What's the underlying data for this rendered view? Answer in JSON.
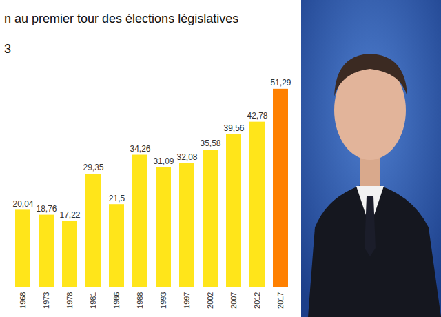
{
  "chart_data": {
    "type": "bar",
    "title": "n au premier tour des élections législatives",
    "subtitle": "3",
    "categories": [
      "1968",
      "1973",
      "1978",
      "1981",
      "1986",
      "1988",
      "1993",
      "1997",
      "2002",
      "2007",
      "2012",
      "2017"
    ],
    "values": [
      20.04,
      18.76,
      17.22,
      29.35,
      21.5,
      34.26,
      31.09,
      32.08,
      35.58,
      39.56,
      42.78,
      51.29
    ],
    "value_labels": [
      "20,04",
      "18,76",
      "17,22",
      "29,35",
      "21,5",
      "34,26",
      "31,09",
      "32,08",
      "35,58",
      "39,56",
      "42,78",
      "51,29"
    ],
    "colors": [
      "#ffe51a",
      "#ffe51a",
      "#ffe51a",
      "#ffe51a",
      "#ffe51a",
      "#ffe51a",
      "#ffe51a",
      "#ffe51a",
      "#ffe51a",
      "#ffe51a",
      "#ffe51a",
      "#ff8000"
    ],
    "ylim": [
      0,
      55
    ],
    "yticks": [],
    "grid": false,
    "data_labels": true,
    "tick_labels": "x"
  }
}
